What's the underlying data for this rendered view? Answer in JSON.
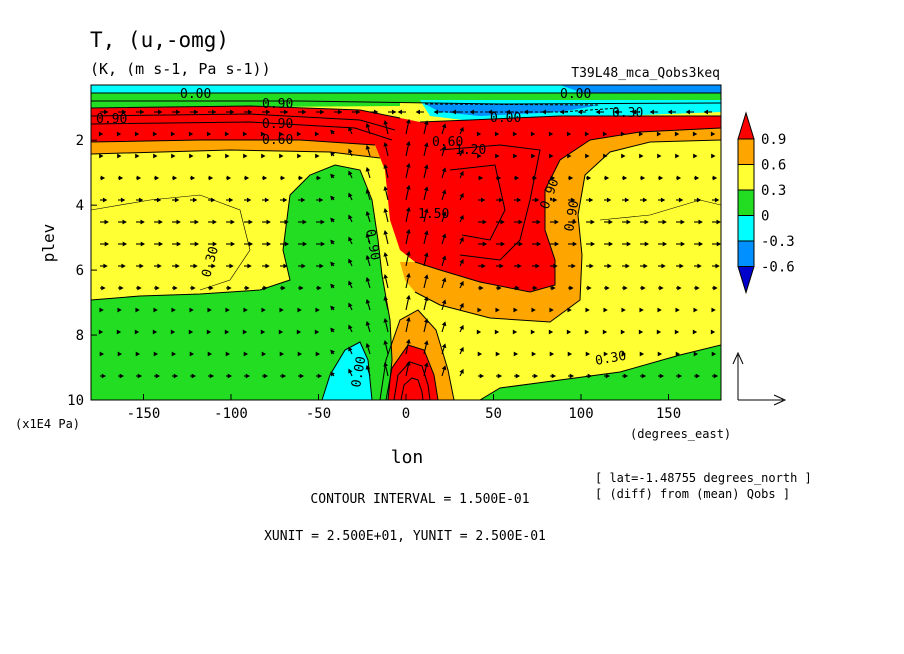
{
  "chart_data": {
    "type": "heatmap",
    "title": "T, (u,-omg)",
    "units": "(K, (m s-1, Pa s-1))",
    "run_id": "T39L48_mca_Qobs3keq",
    "xlabel": "lon",
    "xunit_label": "(degrees_east)",
    "ylabel": "plev",
    "yunit_label": "(x1E4 Pa)",
    "xlim": [
      -180,
      180
    ],
    "ylim": [
      10,
      0.3
    ],
    "xticks": [
      -150,
      -100,
      -50,
      0,
      50,
      100,
      150
    ],
    "yticks": [
      2,
      4,
      6,
      8,
      10
    ],
    "colorbar": {
      "levels": [
        "0.9",
        "0.6",
        "0.3",
        "0",
        "-0.3",
        "-0.6"
      ],
      "colors": [
        "#ff0000",
        "#ffa500",
        "#ffff33",
        "#22dd22",
        "#00ffff",
        "#0090ff",
        "#0000cc"
      ]
    },
    "contour_labels": [
      "0.90",
      "0.90",
      "0.60",
      "0.90",
      "0.00",
      "0.00",
      "0.30",
      "0.60",
      "1.20",
      "1.50",
      "0.90",
      "0.90",
      "0.30",
      "0.30",
      "0.00",
      "0.90",
      "0.00"
    ],
    "footer": {
      "contour_interval": "CONTOUR INTERVAL = 1.500E-01",
      "units_line": "XUNIT = 2.500E+01, YUNIT = 2.500E-01",
      "lat_note": "[ lat=-1.48755 degrees_north ]",
      "diff_note": "[ (diff) from (mean) Qobs ]"
    }
  }
}
